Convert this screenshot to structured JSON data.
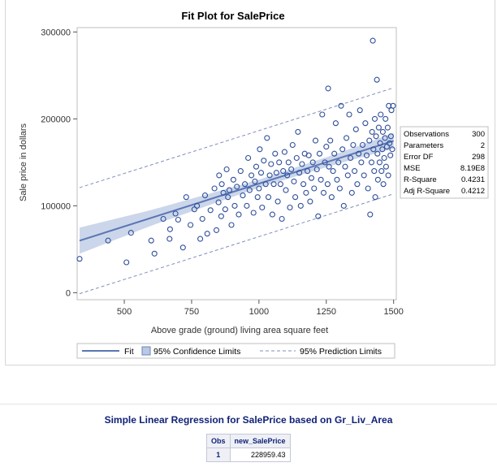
{
  "chart_data": {
    "type": "scatter",
    "title": "Fit Plot for SalePrice",
    "xlabel": "Above grade (ground) living area square feet",
    "ylabel": "Sale price in dollars",
    "xlim": [
      325,
      1510
    ],
    "ylim": [
      -8000,
      305000
    ],
    "xticks": [
      500,
      750,
      1000,
      1250,
      1500
    ],
    "yticks": [
      0,
      100000,
      200000,
      300000
    ],
    "fit": {
      "intercept": 27000,
      "slope": 98.5
    },
    "confidence_band_halfwidth_at": {
      "x": [
        334,
        600,
        1000,
        1300,
        1500
      ],
      "hw": [
        15000,
        9000,
        4500,
        6000,
        9000
      ]
    },
    "prediction_offset": 61000,
    "colors": {
      "marker": "#2f4f9a",
      "fit": "#5b75b4",
      "band": "#b9c8e3",
      "pred": "#7d8fba"
    },
    "points": [
      [
        334,
        39000
      ],
      [
        440,
        60000
      ],
      [
        508,
        35000
      ],
      [
        525,
        69000
      ],
      [
        600,
        60000
      ],
      [
        612,
        45000
      ],
      [
        645,
        85000
      ],
      [
        668,
        62000
      ],
      [
        670,
        73000
      ],
      [
        690,
        91000
      ],
      [
        700,
        84000
      ],
      [
        718,
        52000
      ],
      [
        730,
        110000
      ],
      [
        746,
        78000
      ],
      [
        760,
        96000
      ],
      [
        770,
        100000
      ],
      [
        782,
        62000
      ],
      [
        790,
        85000
      ],
      [
        800,
        112000
      ],
      [
        808,
        68000
      ],
      [
        820,
        95000
      ],
      [
        835,
        120000
      ],
      [
        842,
        72000
      ],
      [
        850,
        104000
      ],
      [
        852,
        135000
      ],
      [
        860,
        88000
      ],
      [
        862,
        125000
      ],
      [
        868,
        115000
      ],
      [
        875,
        96000
      ],
      [
        880,
        142000
      ],
      [
        885,
        110000
      ],
      [
        890,
        118000
      ],
      [
        898,
        78000
      ],
      [
        905,
        130000
      ],
      [
        910,
        100000
      ],
      [
        918,
        122000
      ],
      [
        925,
        90000
      ],
      [
        932,
        140000
      ],
      [
        940,
        112000
      ],
      [
        948,
        125000
      ],
      [
        955,
        100000
      ],
      [
        960,
        155000
      ],
      [
        965,
        118000
      ],
      [
        972,
        135000
      ],
      [
        980,
        92000
      ],
      [
        985,
        128000
      ],
      [
        990,
        145000
      ],
      [
        995,
        110000
      ],
      [
        1000,
        120000
      ],
      [
        1003,
        165000
      ],
      [
        1008,
        138000
      ],
      [
        1012,
        98000
      ],
      [
        1018,
        152000
      ],
      [
        1025,
        125000
      ],
      [
        1030,
        178000
      ],
      [
        1035,
        110000
      ],
      [
        1040,
        135000
      ],
      [
        1045,
        148000
      ],
      [
        1050,
        90000
      ],
      [
        1055,
        125000
      ],
      [
        1060,
        160000
      ],
      [
        1065,
        138000
      ],
      [
        1070,
        105000
      ],
      [
        1075,
        150000
      ],
      [
        1080,
        125000
      ],
      [
        1085,
        85000
      ],
      [
        1090,
        140000
      ],
      [
        1095,
        162000
      ],
      [
        1100,
        118000
      ],
      [
        1105,
        135000
      ],
      [
        1110,
        150000
      ],
      [
        1115,
        98000
      ],
      [
        1120,
        142000
      ],
      [
        1125,
        170000
      ],
      [
        1130,
        128000
      ],
      [
        1135,
        110000
      ],
      [
        1140,
        155000
      ],
      [
        1145,
        185000
      ],
      [
        1150,
        138000
      ],
      [
        1155,
        100000
      ],
      [
        1160,
        148000
      ],
      [
        1165,
        125000
      ],
      [
        1170,
        160000
      ],
      [
        1175,
        115000
      ],
      [
        1180,
        140000
      ],
      [
        1185,
        158000
      ],
      [
        1190,
        105000
      ],
      [
        1195,
        132000
      ],
      [
        1200,
        150000
      ],
      [
        1205,
        120000
      ],
      [
        1210,
        175000
      ],
      [
        1215,
        142000
      ],
      [
        1220,
        88000
      ],
      [
        1225,
        160000
      ],
      [
        1230,
        130000
      ],
      [
        1235,
        205000
      ],
      [
        1240,
        115000
      ],
      [
        1245,
        150000
      ],
      [
        1250,
        168000
      ],
      [
        1255,
        125000
      ],
      [
        1257,
        235000
      ],
      [
        1260,
        145000
      ],
      [
        1265,
        175000
      ],
      [
        1270,
        110000
      ],
      [
        1275,
        140000
      ],
      [
        1280,
        160000
      ],
      [
        1285,
        195000
      ],
      [
        1290,
        130000
      ],
      [
        1295,
        150000
      ],
      [
        1300,
        120000
      ],
      [
        1305,
        215000
      ],
      [
        1310,
        165000
      ],
      [
        1315,
        100000
      ],
      [
        1320,
        145000
      ],
      [
        1325,
        178000
      ],
      [
        1330,
        135000
      ],
      [
        1335,
        205000
      ],
      [
        1340,
        155000
      ],
      [
        1345,
        115000
      ],
      [
        1350,
        170000
      ],
      [
        1355,
        140000
      ],
      [
        1360,
        188000
      ],
      [
        1365,
        125000
      ],
      [
        1370,
        160000
      ],
      [
        1375,
        210000
      ],
      [
        1380,
        150000
      ],
      [
        1385,
        170000
      ],
      [
        1390,
        135000
      ],
      [
        1395,
        195000
      ],
      [
        1400,
        158000
      ],
      [
        1405,
        120000
      ],
      [
        1410,
        175000
      ],
      [
        1413,
        90000
      ],
      [
        1418,
        150000
      ],
      [
        1420,
        185000
      ],
      [
        1423,
        290000
      ],
      [
        1425,
        165000
      ],
      [
        1428,
        140000
      ],
      [
        1430,
        200000
      ],
      [
        1432,
        110000
      ],
      [
        1435,
        180000
      ],
      [
        1438,
        245000
      ],
      [
        1440,
        160000
      ],
      [
        1442,
        130000
      ],
      [
        1445,
        190000
      ],
      [
        1448,
        150000
      ],
      [
        1450,
        172000
      ],
      [
        1452,
        205000
      ],
      [
        1455,
        140000
      ],
      [
        1458,
        165000
      ],
      [
        1460,
        185000
      ],
      [
        1462,
        125000
      ],
      [
        1465,
        155000
      ],
      [
        1468,
        178000
      ],
      [
        1470,
        200000
      ],
      [
        1472,
        145000
      ],
      [
        1475,
        168000
      ],
      [
        1478,
        190000
      ],
      [
        1480,
        135000
      ],
      [
        1482,
        215000
      ],
      [
        1485,
        172000
      ],
      [
        1488,
        158000
      ],
      [
        1490,
        180000
      ],
      [
        1492,
        210000
      ],
      [
        1495,
        165000
      ],
      [
        1498,
        215000
      ]
    ],
    "stats": [
      {
        "label": "Observations",
        "value": "300"
      },
      {
        "label": "Parameters",
        "value": "2"
      },
      {
        "label": "Error DF",
        "value": "298"
      },
      {
        "label": "MSE",
        "value": "8.19E8"
      },
      {
        "label": "R-Square",
        "value": "0.4231"
      },
      {
        "label": "Adj R-Square",
        "value": "0.4212"
      }
    ],
    "legend": [
      {
        "label": "Fit"
      },
      {
        "label": "95% Confidence Limits"
      },
      {
        "label": "95% Prediction Limits"
      }
    ]
  },
  "regression": {
    "title": "Simple Linear Regression for SalePrice based on Gr_Liv_Area",
    "columns": [
      "Obs",
      "new_SalePrice"
    ],
    "rows": [
      [
        "1",
        "228959.43"
      ]
    ]
  }
}
